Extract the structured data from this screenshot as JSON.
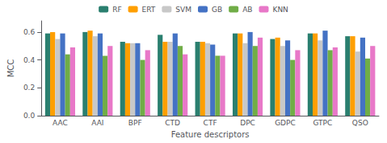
{
  "chart_data": {
    "type": "bar",
    "xlabel": "Feature descriptors",
    "ylabel": "MCC",
    "categories": [
      "AAC",
      "AAI",
      "BPF",
      "CTD",
      "CTF",
      "DPC",
      "GDPC",
      "GTPC",
      "QSO"
    ],
    "series": [
      {
        "name": "RF",
        "color": "#2a7f6f",
        "values": [
          0.59,
          0.6,
          0.53,
          0.58,
          0.53,
          0.59,
          0.55,
          0.59,
          0.57
        ]
      },
      {
        "name": "ERT",
        "color": "#ff9f00",
        "values": [
          0.6,
          0.61,
          0.52,
          0.53,
          0.53,
          0.59,
          0.56,
          0.59,
          0.57
        ]
      },
      {
        "name": "SVM",
        "color": "#c8c8c8",
        "values": [
          0.55,
          0.57,
          0.52,
          0.53,
          0.52,
          0.52,
          0.5,
          0.54,
          0.46
        ]
      },
      {
        "name": "GB",
        "color": "#4472c4",
        "values": [
          0.59,
          0.59,
          0.52,
          0.59,
          0.51,
          0.6,
          0.54,
          0.61,
          0.56
        ]
      },
      {
        "name": "AB",
        "color": "#70ad47",
        "values": [
          0.44,
          0.43,
          0.4,
          0.5,
          0.43,
          0.5,
          0.4,
          0.47,
          0.41
        ]
      },
      {
        "name": "KNN",
        "color": "#e878c8",
        "values": [
          0.49,
          0.5,
          0.47,
          0.44,
          0.43,
          0.56,
          0.47,
          0.49,
          0.5
        ]
      }
    ],
    "ylim": [
      0.0,
      0.68
    ],
    "yticks": [
      {
        "value": 0,
        "label": "0.0"
      },
      0.2,
      0.4,
      0.6
    ],
    "grid": false,
    "legend": "top"
  }
}
